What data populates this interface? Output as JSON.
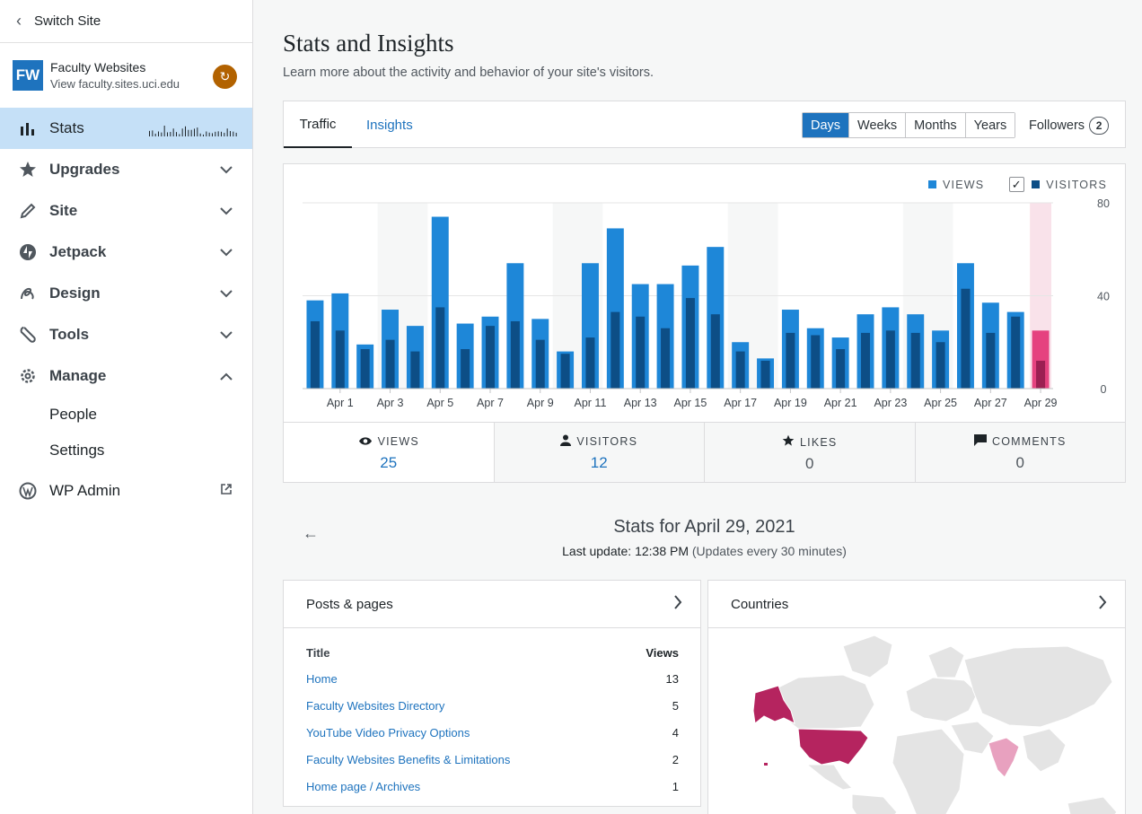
{
  "sidebar": {
    "switch_site": "Switch Site",
    "site_logo": "FW",
    "site_name": "Faculty Websites",
    "site_url": "View faculty.sites.uci.edu",
    "nav": [
      {
        "label": "Stats",
        "icon": "stats-bars-icon",
        "active": true
      },
      {
        "label": "Upgrades",
        "icon": "star-icon",
        "caret": "down"
      },
      {
        "label": "Site",
        "icon": "pencil-icon",
        "caret": "down"
      },
      {
        "label": "Jetpack",
        "icon": "jetpack-bolt-icon",
        "caret": "down"
      },
      {
        "label": "Design",
        "icon": "brush-icon",
        "caret": "down"
      },
      {
        "label": "Tools",
        "icon": "wrench-icon",
        "caret": "down"
      },
      {
        "label": "Manage",
        "icon": "gear-icon",
        "caret": "up"
      }
    ],
    "sub_items": [
      "People",
      "Settings"
    ],
    "wp_admin": "WP Admin"
  },
  "page": {
    "title": "Stats and Insights",
    "subtitle": "Learn more about the activity and behavior of your site's visitors."
  },
  "tabs": {
    "traffic": "Traffic",
    "insights": "Insights",
    "periods": [
      "Days",
      "Weeks",
      "Months",
      "Years"
    ],
    "active_period": "Days",
    "followers_label": "Followers",
    "followers_count": "2"
  },
  "chart_data": {
    "type": "bar",
    "categories": [
      "Mar 31",
      "Apr 1",
      "Apr 2",
      "Apr 3",
      "Apr 4",
      "Apr 5",
      "Apr 6",
      "Apr 7",
      "Apr 8",
      "Apr 9",
      "Apr 10",
      "Apr 11",
      "Apr 12",
      "Apr 13",
      "Apr 14",
      "Apr 15",
      "Apr 16",
      "Apr 17",
      "Apr 18",
      "Apr 19",
      "Apr 20",
      "Apr 21",
      "Apr 22",
      "Apr 23",
      "Apr 24",
      "Apr 25",
      "Apr 26",
      "Apr 27",
      "Apr 28",
      "Apr 29"
    ],
    "tick_labels": [
      "Apr 1",
      "Apr 3",
      "Apr 5",
      "Apr 7",
      "Apr 9",
      "Apr 11",
      "Apr 13",
      "Apr 15",
      "Apr 17",
      "Apr 19",
      "Apr 21",
      "Apr 23",
      "Apr 25",
      "Apr 27",
      "Apr 29"
    ],
    "series": [
      {
        "name": "VIEWS",
        "color": "#1e87d8",
        "values": [
          38,
          41,
          19,
          34,
          27,
          74,
          28,
          31,
          54,
          30,
          16,
          54,
          69,
          45,
          45,
          53,
          61,
          20,
          13,
          34,
          26,
          22,
          32,
          35,
          32,
          25,
          54,
          37,
          33,
          25
        ]
      },
      {
        "name": "VISITORS",
        "color": "#0d4e86",
        "values": [
          29,
          25,
          17,
          21,
          16,
          35,
          17,
          27,
          29,
          21,
          15,
          22,
          33,
          31,
          26,
          39,
          32,
          16,
          12,
          24,
          23,
          17,
          24,
          25,
          24,
          20,
          43,
          24,
          31,
          12
        ]
      }
    ],
    "highlight_color": "#e5427f",
    "highlight_index": 29,
    "ylim": [
      0,
      80
    ],
    "y_ticks": [
      0,
      40,
      80
    ],
    "legend": "top-right"
  },
  "summary": [
    {
      "label": "VIEWS",
      "icon": "eye-icon",
      "value": "25"
    },
    {
      "label": "VISITORS",
      "icon": "person-icon",
      "value": "12"
    },
    {
      "label": "LIKES",
      "icon": "star-icon",
      "value": "0"
    },
    {
      "label": "COMMENTS",
      "icon": "comment-icon",
      "value": "0"
    }
  ],
  "stats_for": "Stats for April 29, 2021",
  "last_update": "Last update: 12:38 PM",
  "update_note": "(Updates every 30 minutes)",
  "posts_panel": {
    "title": "Posts & pages",
    "col_title": "Title",
    "col_views": "Views",
    "rows": [
      {
        "title": "Home",
        "views": "13"
      },
      {
        "title": "Faculty Websites Directory",
        "views": "5"
      },
      {
        "title": "YouTube Video Privacy Options",
        "views": "4"
      },
      {
        "title": "Faculty Websites Benefits & Limitations",
        "views": "2"
      },
      {
        "title": "Home page / Archives",
        "views": "1"
      }
    ]
  },
  "countries_panel": {
    "title": "Countries"
  }
}
